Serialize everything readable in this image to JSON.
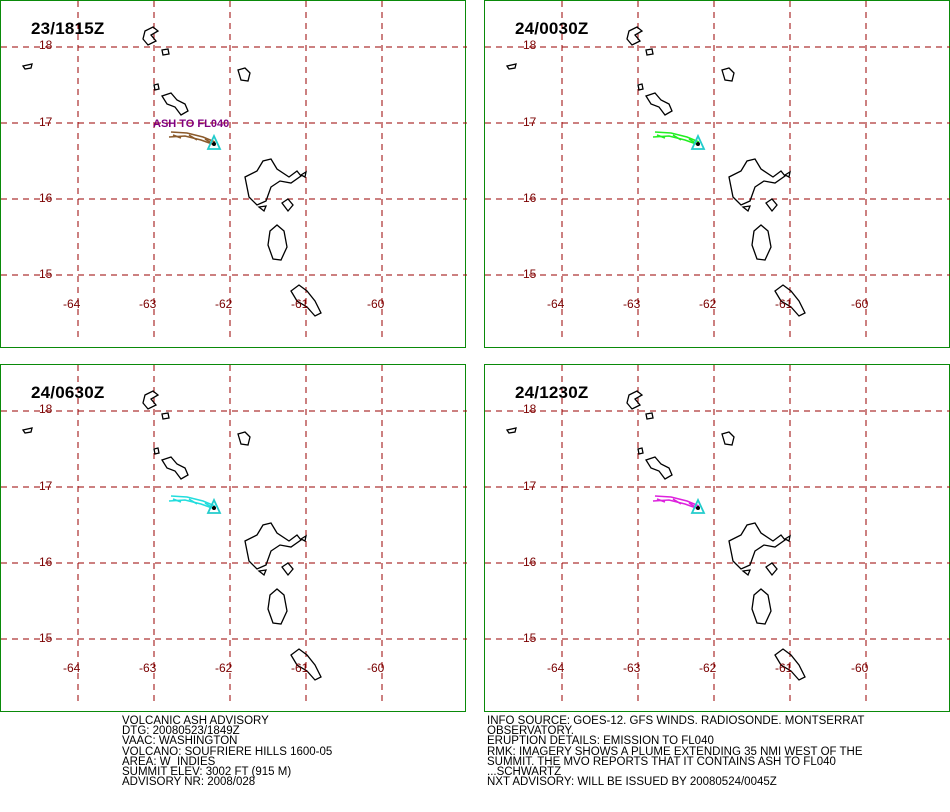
{
  "panels": [
    {
      "time": "23/1815Z",
      "plume_color": "#8b5a2b",
      "plume_label": "ASH TO FL040"
    },
    {
      "time": "24/0030Z",
      "plume_color": "#22ee22",
      "plume_label": ""
    },
    {
      "time": "24/0630Z",
      "plume_color": "#22dddd",
      "plume_label": ""
    },
    {
      "time": "24/1230Z",
      "plume_color": "#dd22dd",
      "plume_label": ""
    }
  ],
  "map": {
    "lat_labels": [
      "18",
      "17",
      "16",
      "15"
    ],
    "lon_labels": [
      "-64",
      "-63",
      "-62",
      "-61",
      "-60"
    ],
    "grid_color": "#990000",
    "coast_color": "#000000",
    "volcano_color": "#22cccc",
    "frame_color": "#0a8a0a"
  },
  "advisory_left": [
    "VOLCANIC ASH ADVISORY",
    "DTG: 20080523/1849Z",
    "VAAC: WASHINGTON",
    "VOLCANO: SOUFRIERE HILLS 1600-05",
    "AREA: W_INDIES",
    "SUMMIT ELEV: 3002 FT (915 M)",
    "ADVISORY NR: 2008/028"
  ],
  "advisory_right": [
    "INFO SOURCE: GOES-12. GFS WINDS. RADIOSONDE. MONTSERRAT",
    "OBSERVATORY.",
    "ERUPTION DETAILS: EMISSION TO FL040",
    "RMK: IMAGERY SHOWS A PLUME EXTENDING 35 NMI WEST OF THE",
    "SUMMIT. THE MVO REPORTS THAT IT CONTAINS ASH TO FL040",
    "...SCHWARTZ",
    "NXT ADVISORY: WILL BE ISSUED BY 20080524/0045Z"
  ]
}
